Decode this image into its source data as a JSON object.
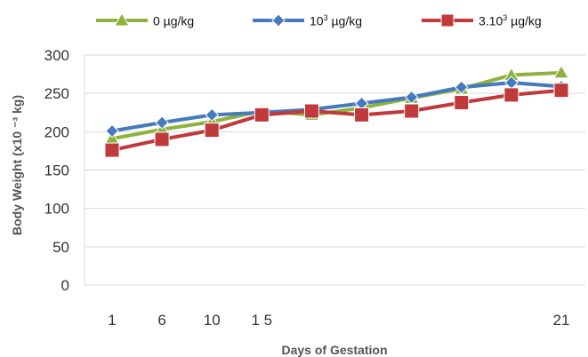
{
  "chart_data": {
    "type": "line",
    "xlabel": "Days of Gestation",
    "ylabel": "Body Weight (x10 ⁻³ kg)",
    "ylim": [
      0,
      300
    ],
    "yticks": [
      "0",
      "50",
      "100",
      "150",
      "200",
      "250",
      "300"
    ],
    "xtick_labels": [
      "1",
      "6",
      "10",
      "1 5",
      "21"
    ],
    "grid": "horizontal",
    "legend_position": "top",
    "series": [
      {
        "name": "0 µg/kg",
        "color": "#8db33d",
        "marker": "triangle",
        "values": [
          191,
          203,
          213,
          227,
          222,
          231,
          244,
          256,
          274,
          277
        ]
      },
      {
        "name": "10³ µg/kg",
        "color": "#4679bd",
        "marker": "diamond",
        "values": [
          201,
          212,
          222,
          225,
          229,
          237,
          245,
          258,
          264,
          259
        ]
      },
      {
        "name": "3.10³ µg/kg",
        "color": "#c0393b",
        "marker": "square",
        "values": [
          176,
          190,
          202,
          222,
          227,
          222,
          227,
          238,
          248,
          254
        ]
      }
    ]
  },
  "legend": {
    "items": [
      {
        "base": "0 µg/kg",
        "sup": "",
        "rest": ""
      },
      {
        "base": "10",
        "sup": "3",
        "rest": " µg/kg"
      },
      {
        "base": "3.10",
        "sup": "3",
        "rest": " µg/kg"
      }
    ]
  }
}
